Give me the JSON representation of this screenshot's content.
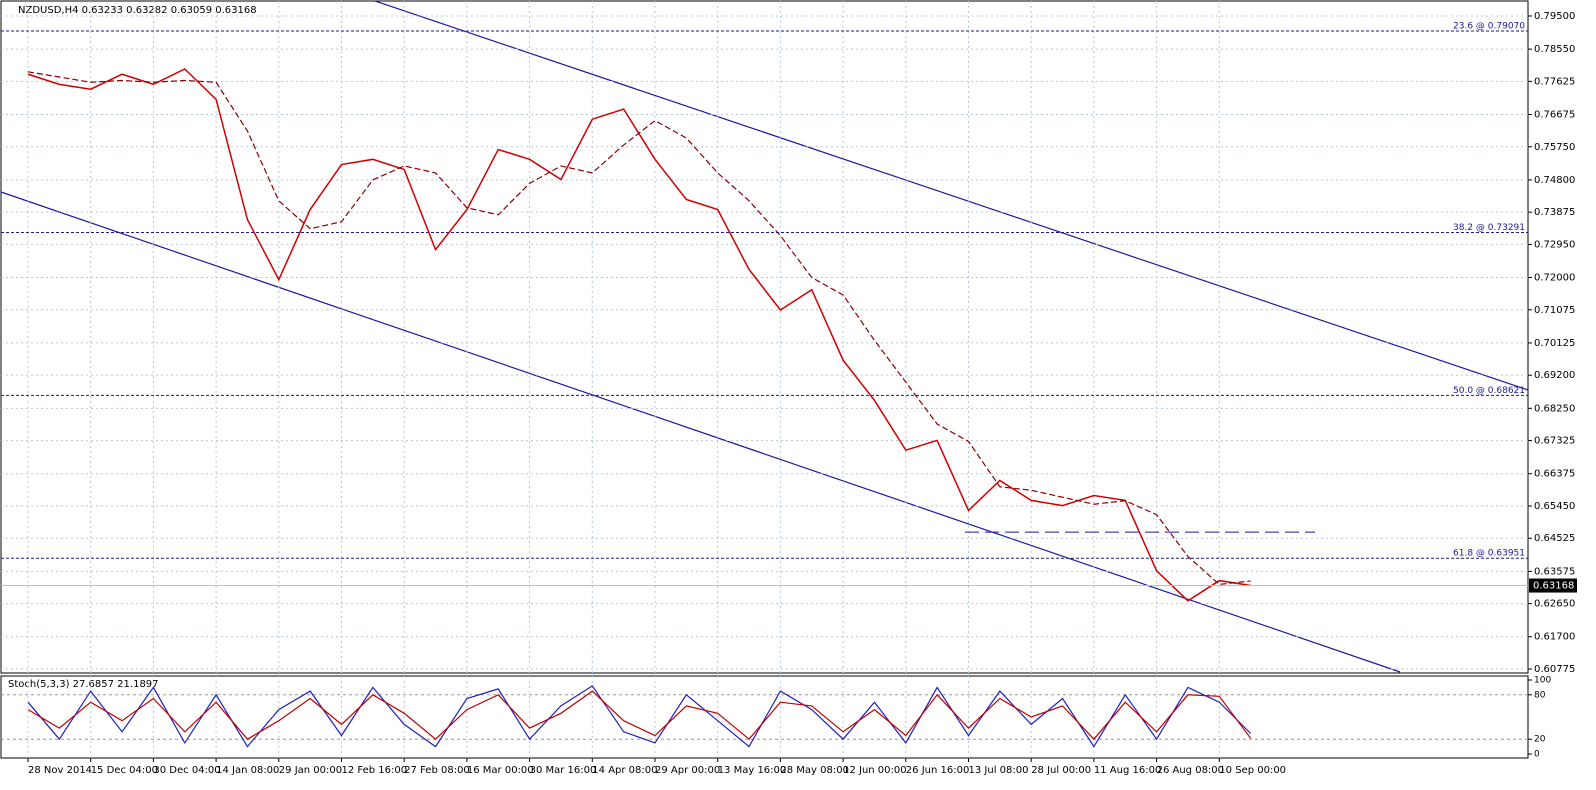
{
  "chart_data": [
    {
      "type": "line",
      "title": "NZDUSD,H4  0.63233 0.63282 0.63059 0.63168",
      "categories": [
        "28 Nov 2014",
        null,
        "15 Dec 04:00",
        null,
        "30 Dec 04:00",
        null,
        "14 Jan 08:00",
        null,
        "29 Jan 00:00",
        null,
        "12 Feb 16:00",
        null,
        "27 Feb 08:00",
        null,
        "16 Mar 00:00",
        null,
        "30 Mar 16:00",
        null,
        "14 Apr 08:00",
        null,
        "29 Apr 00:00",
        null,
        "13 May 16:00",
        null,
        "28 May 08:00",
        null,
        "12 Jun 00:00",
        null,
        "26 Jun 16:00",
        null,
        "13 Jul 08:00",
        null,
        "28 Jul 00:00",
        null,
        "11 Aug 16:00",
        null,
        "26 Aug 08:00",
        null,
        "10 Sep 00:00",
        null
      ],
      "series": [
        {
          "color": "#d00000",
          "values": [
            0.7783,
            0.7754,
            0.774,
            0.7783,
            0.7754,
            0.7798,
            0.7711,
            0.7366,
            0.7194,
            0.7395,
            0.7524,
            0.7539,
            0.751,
            0.728,
            0.7395,
            0.7567,
            0.7539,
            0.7481,
            0.7654,
            0.7683,
            0.7539,
            0.7424,
            0.7395,
            0.7223,
            0.7107,
            0.7165,
            0.6963,
            0.6848,
            0.6705,
            0.6733,
            0.6532,
            0.6618,
            0.6561,
            0.6546,
            0.6575,
            0.6561,
            0.6359,
            0.6273,
            0.6331,
            0.63168
          ]
        },
        {
          "color": "#8b0000",
          "values": [
            0.779,
            0.7775,
            0.776,
            0.7765,
            0.776,
            0.7765,
            0.776,
            0.762,
            0.742,
            0.734,
            0.736,
            0.748,
            0.752,
            0.75,
            0.74,
            0.738,
            0.747,
            0.752,
            0.75,
            0.758,
            0.765,
            0.76,
            0.75,
            0.742,
            0.732,
            0.72,
            0.715,
            0.702,
            0.69,
            0.678,
            0.673,
            0.66,
            0.659,
            0.657,
            0.655,
            0.656,
            0.652,
            0.64,
            0.632,
            0.633
          ]
        }
      ],
      "ylim": [
        0.6066,
        0.7993
      ],
      "yticks": [
        {
          "value": 0.795,
          "label": "0.79500"
        },
        {
          "value": 0.7855,
          "label": "0.78550"
        },
        {
          "value": 0.77625,
          "label": "0.77625"
        },
        {
          "value": 0.76675,
          "label": "0.76675"
        },
        {
          "value": 0.7575,
          "label": "0.75750"
        },
        {
          "value": 0.748,
          "label": "0.74800"
        },
        {
          "value": 0.73875,
          "label": "0.73875"
        },
        {
          "value": 0.7295,
          "label": "0.72950"
        },
        {
          "value": 0.72,
          "label": "0.72000"
        },
        {
          "value": 0.71075,
          "label": "0.71075"
        },
        {
          "value": 0.70125,
          "label": "0.70125"
        },
        {
          "value": 0.692,
          "label": "0.69200"
        },
        {
          "value": 0.6825,
          "label": "0.68250"
        },
        {
          "value": 0.67325,
          "label": "0.67325"
        },
        {
          "value": 0.66375,
          "label": "0.66375"
        },
        {
          "value": 0.6545,
          "label": "0.65450"
        },
        {
          "value": 0.64525,
          "label": "0.64525"
        },
        {
          "value": 0.63575,
          "label": "0.63575"
        },
        {
          "value": 0.6265,
          "label": "0.62650"
        },
        {
          "value": 0.617,
          "label": "0.61700"
        },
        {
          "value": 0.60775,
          "label": "0.60775"
        }
      ],
      "levels": [
        {
          "value": 0.7907,
          "label": "23.6 @ 0.79070"
        },
        {
          "value": 0.73291,
          "label": "38.2 @ 0.73291"
        },
        {
          "value": 0.68621,
          "label": "50.0 @ 0.68621"
        },
        {
          "value": 0.63951,
          "label": "61.8 @ 0.63951"
        }
      ],
      "support": 0.647,
      "last": 0.63168,
      "grid": true
    },
    {
      "type": "stochastic",
      "title": "Stoch(5,3,3) 27.6857 21.1897",
      "series": [
        {
          "color": "#2020c0",
          "values": [
            70,
            20,
            85,
            30,
            90,
            15,
            80,
            10,
            60,
            85,
            25,
            90,
            40,
            10,
            75,
            88,
            20,
            65,
            92,
            30,
            15,
            80,
            45,
            10,
            85,
            60,
            20,
            70,
            15,
            90,
            25,
            85,
            40,
            75,
            10,
            80,
            20,
            90,
            70,
            27.6857
          ]
        },
        {
          "color": "#c00000",
          "values": [
            60,
            35,
            70,
            45,
            75,
            30,
            70,
            20,
            45,
            75,
            40,
            80,
            55,
            20,
            60,
            80,
            35,
            55,
            85,
            45,
            25,
            65,
            55,
            20,
            70,
            65,
            30,
            60,
            25,
            80,
            35,
            75,
            50,
            65,
            20,
            70,
            30,
            80,
            78,
            21.1897
          ]
        }
      ],
      "ylim": [
        0,
        100
      ],
      "yticks": [
        100,
        80,
        20,
        0
      ],
      "levels": [
        80,
        20
      ]
    }
  ]
}
